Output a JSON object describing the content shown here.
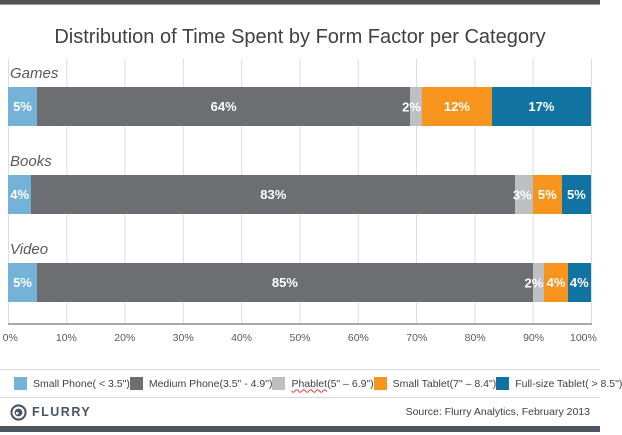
{
  "title": "Distribution of Time Spent by Form Factor per Category",
  "chart_data": {
    "type": "bar",
    "stacked": true,
    "orientation": "horizontal",
    "title": "Distribution of Time Spent by Form Factor per Category",
    "categories": [
      "Games",
      "Books",
      "Video"
    ],
    "series": [
      {
        "name": "Small Phone ( < 3.5\")",
        "color": "#74b2d7",
        "values": [
          5,
          4,
          5
        ],
        "value_label_position": "center"
      },
      {
        "name": "Medium Phone (3.5\" - 4.9\")",
        "color": "#6d6e71",
        "values": [
          64,
          83,
          85
        ],
        "value_label_position": "center"
      },
      {
        "name": "Phablet (5\" – 6.9\")",
        "color": "#bdbfc1",
        "values": [
          2,
          3,
          2
        ],
        "value_label_position": "edge"
      },
      {
        "name": "Small Tablet (7\" – 8.4\")",
        "color": "#f7941e",
        "values": [
          12,
          5,
          4
        ],
        "value_label_position": "center"
      },
      {
        "name": "Full-size Tablet ( > 8.5\")",
        "color": "#1173a2",
        "values": [
          17,
          5,
          4
        ],
        "value_label_position": "center"
      }
    ],
    "value_suffix": "%",
    "x_ticks": [
      "0%",
      "10%",
      "20%",
      "30%",
      "40%",
      "50%",
      "60%",
      "70%",
      "80%",
      "90%",
      "100%"
    ],
    "xlim": [
      0,
      100
    ],
    "grid": true,
    "legend_position": "bottom"
  },
  "legend": {
    "items": [
      {
        "name": "Small Phone",
        "size": " ( < 3.5\")",
        "color": "#74b2d7",
        "spellcheck_underline": false
      },
      {
        "name": "Medium Phone",
        "size": " (3.5\" - 4.9\")",
        "color": "#6d6e71",
        "spellcheck_underline": false
      },
      {
        "name": "Phablet",
        "size": " (5\" – 6.9\")",
        "color": "#bdbfc1",
        "spellcheck_underline": true
      },
      {
        "name": "Small Tablet",
        "size": " (7\" – 8.4\")",
        "color": "#f7941e",
        "spellcheck_underline": false
      },
      {
        "name": "Full-size Tablet",
        "size": " ( > 8.5\")",
        "color": "#1173a2",
        "spellcheck_underline": false
      }
    ]
  },
  "footer": {
    "logo_text": "FLURRY",
    "source": "Source: Flurry Analytics, February 2013"
  },
  "colors": {
    "small_phone": "#74b2d7",
    "medium_phone": "#6d6e71",
    "phablet": "#bdbfc1",
    "small_tablet": "#f7941e",
    "full_size_tablet": "#1173a2",
    "gridline": "#dcddde",
    "axis_line": "#a7a9ac",
    "text_dark": "#414042",
    "text_gray": "#58595b",
    "top_bar": "#545457",
    "bottom_bar": "#4d5660"
  }
}
